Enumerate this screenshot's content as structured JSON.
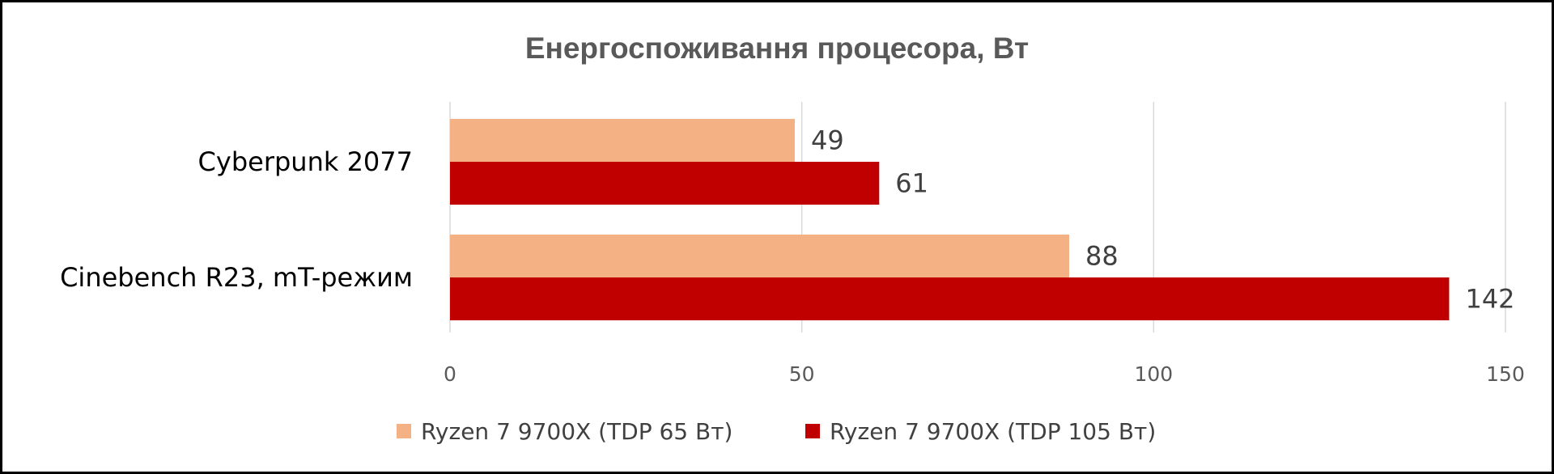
{
  "chart_data": {
    "type": "bar",
    "orientation": "horizontal",
    "title": "Енергоспоживання процесора, Вт",
    "categories": [
      "Cyberpunk 2077",
      "Cinebench  R23, mT-режим"
    ],
    "series": [
      {
        "name": "Ryzen 7 9700X  (TDP 65 Вт)",
        "color": "#F4B183",
        "values": [
          49,
          88
        ]
      },
      {
        "name": "Ryzen 7 9700X  (TDP 105 Вт)",
        "color": "#C00000",
        "values": [
          61,
          142
        ]
      }
    ],
    "xlim": [
      0,
      150
    ],
    "ticks": [
      "0",
      "50",
      "100",
      "150"
    ],
    "grid": true,
    "legend_position": "bottom"
  }
}
